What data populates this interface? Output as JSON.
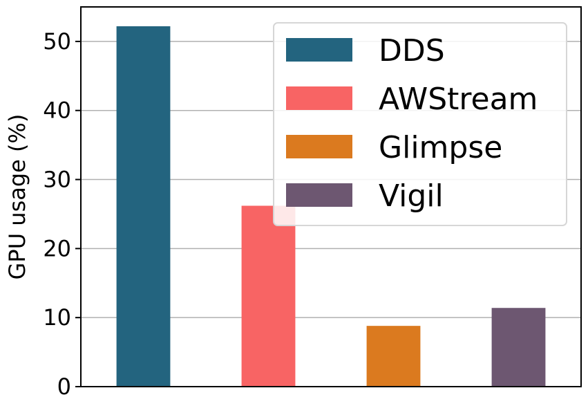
{
  "chart_data": {
    "type": "bar",
    "categories": [
      "DDS",
      "AWStream",
      "Glimpse",
      "Vigil"
    ],
    "values": [
      52.2,
      26.2,
      8.8,
      11.4
    ],
    "colors": [
      "#23647f",
      "#f86464",
      "#db7a1f",
      "#6d5771"
    ],
    "title": "",
    "xlabel": "",
    "ylabel": "GPU usage (%)",
    "ylim": [
      0,
      55
    ],
    "yticks": [
      0,
      10,
      20,
      30,
      40,
      50
    ],
    "grid": true,
    "legend": {
      "position": "top-right",
      "entries": [
        "DDS",
        "AWStream",
        "Glimpse",
        "Vigil"
      ]
    }
  }
}
